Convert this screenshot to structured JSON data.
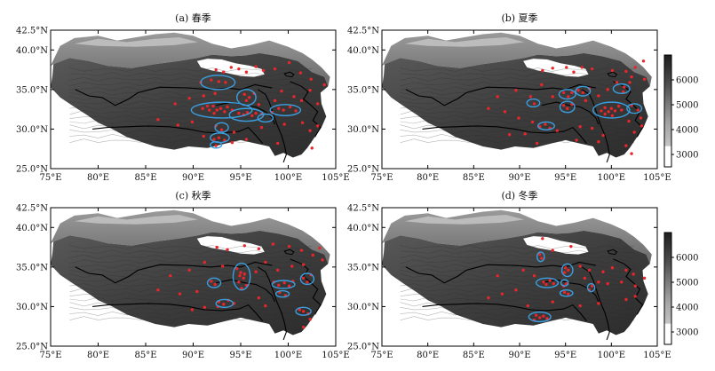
{
  "panels": [
    {
      "title": "(a) 春季"
    },
    {
      "title": "(b) 夏季"
    },
    {
      "title": "(c) 秋季"
    },
    {
      "title": "(d) 冬季"
    }
  ],
  "axes": {
    "x_ticks": [
      "75°E",
      "80°E",
      "85°E",
      "90°E",
      "95°E",
      "100°E",
      "105°E"
    ],
    "y_ticks": [
      "25.0°N",
      "30.0°N",
      "35.0°N",
      "40.0°N",
      "42.5°N"
    ],
    "xlim": [
      75,
      105
    ],
    "ylim": [
      25,
      42.5
    ]
  },
  "colorbar": {
    "ticks": [
      "6000",
      "5000",
      "4000",
      "3000"
    ],
    "values": [
      6000,
      5000,
      4000,
      3000
    ],
    "range": [
      2500,
      7000
    ]
  },
  "colors": {
    "station_dot": "#e8262b",
    "cluster_ellipse": "#3a9fe0",
    "elevation_low": "#ffffff",
    "elevation_high": "#1a1a1a"
  },
  "chart_data": [
    {
      "type": "scatter",
      "title": "(a) 春季",
      "xlim": [
        75,
        105
      ],
      "ylim": [
        25,
        42.5
      ],
      "points": [
        [
          92.4,
          37.5
        ],
        [
          93.2,
          37.2
        ],
        [
          94.0,
          37.8
        ],
        [
          94.8,
          37.6
        ],
        [
          95.6,
          37.2
        ],
        [
          96.6,
          37.9
        ],
        [
          97.4,
          37.4
        ],
        [
          98.6,
          37.6
        ],
        [
          100.1,
          38.4
        ],
        [
          101.3,
          37.1
        ],
        [
          102.4,
          36.3
        ],
        [
          90.8,
          35.9
        ],
        [
          91.9,
          36.2
        ],
        [
          92.7,
          36.0
        ],
        [
          93.4,
          35.9
        ],
        [
          95.4,
          34.4
        ],
        [
          95.9,
          34.0
        ],
        [
          96.4,
          34.5
        ],
        [
          95.6,
          33.6
        ],
        [
          88.1,
          33.2
        ],
        [
          89.6,
          33.9
        ],
        [
          91.1,
          34.2
        ],
        [
          92.3,
          34.5
        ],
        [
          96.9,
          33.1
        ],
        [
          98.6,
          33.6
        ],
        [
          99.3,
          34.8
        ],
        [
          100.6,
          34.1
        ],
        [
          101.4,
          33.6
        ],
        [
          102.3,
          34.9
        ],
        [
          103.1,
          33.2
        ],
        [
          103.8,
          35.6
        ],
        [
          91.0,
          32.6
        ],
        [
          91.7,
          32.4
        ],
        [
          92.1,
          32.9
        ],
        [
          92.5,
          32.4
        ],
        [
          92.9,
          32.6
        ],
        [
          93.3,
          32.2
        ],
        [
          93.6,
          32.8
        ],
        [
          94.1,
          32.4
        ],
        [
          91.5,
          32.9
        ],
        [
          92.2,
          32.0
        ],
        [
          94.8,
          32.0
        ],
        [
          95.3,
          31.8
        ],
        [
          95.7,
          32.1
        ],
        [
          96.2,
          31.7
        ],
        [
          96.6,
          32.0
        ],
        [
          97.2,
          31.9
        ],
        [
          98.3,
          32.1
        ],
        [
          99.0,
          32.6
        ],
        [
          99.5,
          32.4
        ],
        [
          100.2,
          32.8
        ],
        [
          100.8,
          32.3
        ],
        [
          86.3,
          31.2
        ],
        [
          88.4,
          30.5
        ],
        [
          89.9,
          30.9
        ],
        [
          92.4,
          30.4
        ],
        [
          93.0,
          29.9
        ],
        [
          94.3,
          29.6
        ],
        [
          97.2,
          30.2
        ],
        [
          99.6,
          30.6
        ],
        [
          101.5,
          30.8
        ],
        [
          102.3,
          29.8
        ],
        [
          103.1,
          30.4
        ],
        [
          91.1,
          29.1
        ],
        [
          92.2,
          28.7
        ],
        [
          92.7,
          28.9
        ],
        [
          93.3,
          28.6
        ],
        [
          94.1,
          28.3
        ],
        [
          95.6,
          28.7
        ],
        [
          92.4,
          27.9
        ],
        [
          98.9,
          28.2
        ],
        [
          102.5,
          27.6
        ]
      ],
      "ellipses": [
        {
          "cx": 92.6,
          "cy": 35.9,
          "rx": 1.8,
          "ry": 0.9
        },
        {
          "cx": 95.6,
          "cy": 34.0,
          "rx": 1.0,
          "ry": 1.0
        },
        {
          "cx": 93.0,
          "cy": 32.4,
          "rx": 3.2,
          "ry": 1.0
        },
        {
          "cx": 95.6,
          "cy": 31.8,
          "rx": 1.8,
          "ry": 0.8
        },
        {
          "cx": 99.7,
          "cy": 32.4,
          "rx": 1.6,
          "ry": 0.7
        },
        {
          "cx": 97.6,
          "cy": 31.4,
          "rx": 0.8,
          "ry": 0.5
        },
        {
          "cx": 93.0,
          "cy": 30.2,
          "rx": 0.7,
          "ry": 0.6
        },
        {
          "cx": 92.8,
          "cy": 28.9,
          "rx": 1.0,
          "ry": 0.6
        },
        {
          "cx": 92.4,
          "cy": 28.0,
          "rx": 0.6,
          "ry": 0.4
        }
      ]
    },
    {
      "type": "scatter",
      "title": "(b) 夏季",
      "xlim": [
        75,
        105
      ],
      "ylim": [
        25,
        42.5
      ],
      "points": [
        [
          92.5,
          37.4
        ],
        [
          93.6,
          37.7
        ],
        [
          95.1,
          37.8
        ],
        [
          95.9,
          37.2
        ],
        [
          96.8,
          37.8
        ],
        [
          97.9,
          37.6
        ],
        [
          100.1,
          37.4
        ],
        [
          101.6,
          37.3
        ],
        [
          102.6,
          37.8
        ],
        [
          103.5,
          38.6
        ],
        [
          102.2,
          36.6
        ],
        [
          94.8,
          34.6
        ],
        [
          95.3,
          34.1
        ],
        [
          95.7,
          34.6
        ],
        [
          96.4,
          34.9
        ],
        [
          96.9,
          34.6
        ],
        [
          97.6,
          35.1
        ],
        [
          101.4,
          35.3
        ],
        [
          102.0,
          35.9
        ],
        [
          101.3,
          34.7
        ],
        [
          87.6,
          34.1
        ],
        [
          89.6,
          34.9
        ],
        [
          91.2,
          34.1
        ],
        [
          92.4,
          35.6
        ],
        [
          93.6,
          34.1
        ],
        [
          98.6,
          34.2
        ],
        [
          99.6,
          35.0
        ],
        [
          100.6,
          35.9
        ],
        [
          103.6,
          36.3
        ],
        [
          91.6,
          33.2
        ],
        [
          94.8,
          33.0
        ],
        [
          95.2,
          32.6
        ],
        [
          95.7,
          33.1
        ],
        [
          97.2,
          33.6
        ],
        [
          98.9,
          32.3
        ],
        [
          99.3,
          32.7
        ],
        [
          99.7,
          32.2
        ],
        [
          100.0,
          32.6
        ],
        [
          100.4,
          32.3
        ],
        [
          100.8,
          32.9
        ],
        [
          101.1,
          32.4
        ],
        [
          100.1,
          31.7
        ],
        [
          99.3,
          31.9
        ],
        [
          102.2,
          33.0
        ],
        [
          102.9,
          32.4
        ],
        [
          101.9,
          31.0
        ],
        [
          103.2,
          31.4
        ],
        [
          103.3,
          30.4
        ],
        [
          102.5,
          29.6
        ],
        [
          86.6,
          32.6
        ],
        [
          88.4,
          32.2
        ],
        [
          89.9,
          31.4
        ],
        [
          91.4,
          30.9
        ],
        [
          92.2,
          30.3
        ],
        [
          92.8,
          30.6
        ],
        [
          93.3,
          30.1
        ],
        [
          94.1,
          29.8
        ],
        [
          96.6,
          30.3
        ],
        [
          97.9,
          30.1
        ],
        [
          99.1,
          29.2
        ],
        [
          98.6,
          28.4
        ],
        [
          96.2,
          28.6
        ],
        [
          91.9,
          28.2
        ],
        [
          101.6,
          27.9
        ],
        [
          102.2,
          26.9
        ],
        [
          90.6,
          29.4
        ],
        [
          88.9,
          29.3
        ]
      ],
      "ellipses": [
        {
          "cx": 95.2,
          "cy": 34.4,
          "rx": 0.9,
          "ry": 0.6
        },
        {
          "cx": 96.9,
          "cy": 34.8,
          "rx": 0.8,
          "ry": 0.6
        },
        {
          "cx": 101.1,
          "cy": 35.1,
          "rx": 0.9,
          "ry": 0.6
        },
        {
          "cx": 91.5,
          "cy": 33.3,
          "rx": 0.7,
          "ry": 0.5
        },
        {
          "cx": 95.2,
          "cy": 32.8,
          "rx": 0.8,
          "ry": 0.7
        },
        {
          "cx": 100.0,
          "cy": 32.4,
          "rx": 2.0,
          "ry": 1.0
        },
        {
          "cx": 102.5,
          "cy": 32.6,
          "rx": 0.8,
          "ry": 0.6
        },
        {
          "cx": 92.9,
          "cy": 30.4,
          "rx": 0.9,
          "ry": 0.5
        }
      ]
    },
    {
      "type": "scatter",
      "title": "(c) 秋季",
      "xlim": [
        75,
        105
      ],
      "ylim": [
        25,
        42.5
      ],
      "points": [
        [
          92.5,
          37.5
        ],
        [
          93.6,
          37.2
        ],
        [
          95.4,
          37.7
        ],
        [
          96.9,
          37.3
        ],
        [
          98.4,
          37.9
        ],
        [
          100.1,
          37.6
        ],
        [
          101.4,
          37.1
        ],
        [
          102.6,
          36.5
        ],
        [
          103.3,
          37.4
        ],
        [
          94.6,
          34.8
        ],
        [
          95.0,
          34.3
        ],
        [
          95.3,
          33.6
        ],
        [
          94.8,
          33.1
        ],
        [
          95.6,
          32.7
        ],
        [
          95.1,
          32.3
        ],
        [
          95.4,
          34.1
        ],
        [
          94.9,
          33.9
        ],
        [
          91.9,
          33.2
        ],
        [
          92.3,
          32.8
        ],
        [
          98.5,
          33.1
        ],
        [
          99.0,
          32.7
        ],
        [
          99.6,
          33.0
        ],
        [
          100.1,
          32.6
        ],
        [
          100.5,
          33.2
        ],
        [
          101.6,
          33.6
        ],
        [
          102.0,
          33.1
        ],
        [
          102.4,
          34.0
        ],
        [
          99.1,
          31.8
        ],
        [
          99.7,
          31.4
        ],
        [
          92.7,
          30.6
        ],
        [
          93.2,
          30.3
        ],
        [
          93.7,
          30.8
        ],
        [
          92.6,
          30.0
        ],
        [
          94.3,
          30.4
        ],
        [
          87.6,
          33.9
        ],
        [
          89.6,
          34.6
        ],
        [
          91.2,
          35.6
        ],
        [
          93.1,
          35.1
        ],
        [
          96.6,
          34.4
        ],
        [
          97.6,
          35.6
        ],
        [
          98.9,
          34.6
        ],
        [
          100.4,
          35.1
        ],
        [
          101.6,
          35.3
        ],
        [
          103.6,
          35.9
        ],
        [
          86.3,
          32.1
        ],
        [
          88.6,
          31.6
        ],
        [
          90.4,
          31.9
        ],
        [
          96.9,
          31.1
        ],
        [
          97.6,
          30.1
        ],
        [
          101.6,
          29.4
        ],
        [
          102.1,
          29.1
        ],
        [
          101.2,
          29.6
        ],
        [
          102.3,
          28.4
        ],
        [
          101.6,
          27.4
        ],
        [
          89.9,
          29.6
        ],
        [
          91.2,
          29.9
        ]
      ],
      "ellipses": [
        {
          "cx": 95.1,
          "cy": 33.8,
          "rx": 0.9,
          "ry": 1.7
        },
        {
          "cx": 92.2,
          "cy": 33.0,
          "rx": 0.7,
          "ry": 0.6
        },
        {
          "cx": 99.5,
          "cy": 32.8,
          "rx": 1.2,
          "ry": 0.5
        },
        {
          "cx": 102.0,
          "cy": 33.5,
          "rx": 0.7,
          "ry": 0.7
        },
        {
          "cx": 99.4,
          "cy": 31.6,
          "rx": 0.7,
          "ry": 0.4
        },
        {
          "cx": 93.3,
          "cy": 30.4,
          "rx": 0.9,
          "ry": 0.5
        },
        {
          "cx": 101.6,
          "cy": 29.4,
          "rx": 0.8,
          "ry": 0.5
        }
      ]
    },
    {
      "type": "scatter",
      "title": "(d) 冬季",
      "xlim": [
        75,
        105
      ],
      "ylim": [
        25,
        42.5
      ],
      "points": [
        [
          92.5,
          38.6
        ],
        [
          95.6,
          37.6
        ],
        [
          93.6,
          37.1
        ],
        [
          92.2,
          36.6
        ],
        [
          92.4,
          36.1
        ],
        [
          95.0,
          34.9
        ],
        [
          95.3,
          34.6
        ],
        [
          94.9,
          34.3
        ],
        [
          96.6,
          35.1
        ],
        [
          97.6,
          34.6
        ],
        [
          99.1,
          34.4
        ],
        [
          100.1,
          34.9
        ],
        [
          101.6,
          34.6
        ],
        [
          102.4,
          34.1
        ],
        [
          92.6,
          33.1
        ],
        [
          92.9,
          32.8
        ],
        [
          93.3,
          33.3
        ],
        [
          93.7,
          32.9
        ],
        [
          94.8,
          32.6
        ],
        [
          95.1,
          32.9
        ],
        [
          94.9,
          31.8
        ],
        [
          95.3,
          31.6
        ],
        [
          97.6,
          32.1
        ],
        [
          97.9,
          32.6
        ],
        [
          99.6,
          32.9
        ],
        [
          101.1,
          33.1
        ],
        [
          102.6,
          32.6
        ],
        [
          103.6,
          33.6
        ],
        [
          87.6,
          33.9
        ],
        [
          90.4,
          34.6
        ],
        [
          91.6,
          33.9
        ],
        [
          97.1,
          33.6
        ],
        [
          98.6,
          33.1
        ],
        [
          89.6,
          32.1
        ],
        [
          88.1,
          31.6
        ],
        [
          91.8,
          28.9
        ],
        [
          92.2,
          28.6
        ],
        [
          92.6,
          28.8
        ],
        [
          93.0,
          28.5
        ],
        [
          91.6,
          28.3
        ],
        [
          93.6,
          30.6
        ],
        [
          96.6,
          30.1
        ],
        [
          98.6,
          30.4
        ],
        [
          101.6,
          30.9
        ],
        [
          102.6,
          31.3
        ],
        [
          90.9,
          30.1
        ],
        [
          86.6,
          31.1
        ]
      ],
      "ellipses": [
        {
          "cx": 92.3,
          "cy": 36.3,
          "rx": 0.4,
          "ry": 0.6
        },
        {
          "cx": 95.2,
          "cy": 34.6,
          "rx": 0.6,
          "ry": 0.8
        },
        {
          "cx": 93.0,
          "cy": 33.0,
          "rx": 1.2,
          "ry": 0.6
        },
        {
          "cx": 94.9,
          "cy": 33.0,
          "rx": 0.4,
          "ry": 0.4
        },
        {
          "cx": 95.1,
          "cy": 31.7,
          "rx": 0.7,
          "ry": 0.4
        },
        {
          "cx": 97.8,
          "cy": 32.4,
          "rx": 0.4,
          "ry": 0.5
        },
        {
          "cx": 92.2,
          "cy": 28.7,
          "rx": 1.2,
          "ry": 0.6
        }
      ]
    }
  ]
}
